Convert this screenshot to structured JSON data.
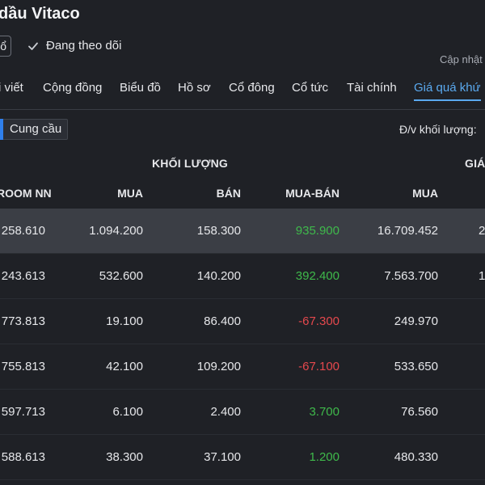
{
  "header": {
    "title": "dầu Vitaco",
    "chip_text": "ổ",
    "follow_label": "Đang theo dõi",
    "updated_label": "Cập nhật"
  },
  "tabs": [
    {
      "label": "i viết"
    },
    {
      "label": "Cộng đồng"
    },
    {
      "label": "Biểu đồ"
    },
    {
      "label": "Hồ sơ"
    },
    {
      "label": "Cổ đông"
    },
    {
      "label": "Cổ tức"
    },
    {
      "label": "Tài chính"
    },
    {
      "label": "Giá quá khứ",
      "active": true
    }
  ],
  "toolbar": {
    "cung_cau_label": "Cung cầu",
    "unit_label": "Đ/v khối lượng:"
  },
  "table": {
    "group_headers": {
      "khoi_luong": "KHỐI LƯỢNG",
      "gia": "GIÁ"
    },
    "columns": [
      "ROOM NN",
      "MUA",
      "BÁN",
      "MUA-BÁN",
      "MUA"
    ],
    "rows": [
      {
        "room_nn": "258.610",
        "mua": "1.094.200",
        "ban": "158.300",
        "mua_ban": "935.900",
        "mua_ban_sign": "pos",
        "gia_mua": "16.709.452",
        "edge": "2"
      },
      {
        "room_nn": "243.613",
        "mua": "532.600",
        "ban": "140.200",
        "mua_ban": "392.400",
        "mua_ban_sign": "pos",
        "gia_mua": "7.563.700",
        "edge": "1"
      },
      {
        "room_nn": "773.813",
        "mua": "19.100",
        "ban": "86.400",
        "mua_ban": "-67.300",
        "mua_ban_sign": "neg",
        "gia_mua": "249.970",
        "edge": ""
      },
      {
        "room_nn": "755.813",
        "mua": "42.100",
        "ban": "109.200",
        "mua_ban": "-67.100",
        "mua_ban_sign": "neg",
        "gia_mua": "533.650",
        "edge": ""
      },
      {
        "room_nn": "597.713",
        "mua": "6.100",
        "ban": "2.400",
        "mua_ban": "3.700",
        "mua_ban_sign": "pos",
        "gia_mua": "76.560",
        "edge": ""
      },
      {
        "room_nn": "588.613",
        "mua": "38.300",
        "ban": "37.100",
        "mua_ban": "1.200",
        "mua_ban_sign": "pos",
        "gia_mua": "480.330",
        "edge": ""
      }
    ]
  },
  "colors": {
    "background": "#1f2126",
    "highlight_row": "#3b3e45",
    "accent": "#5aa9ef",
    "positive": "#3fb94b",
    "negative": "#e5484d"
  }
}
